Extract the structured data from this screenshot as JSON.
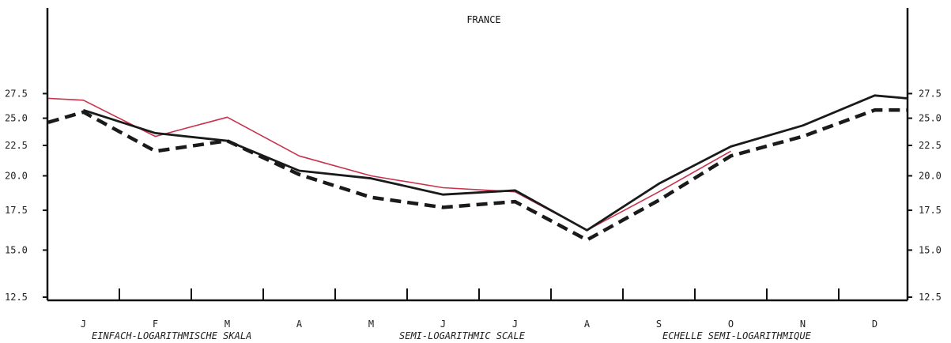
{
  "chart_data": {
    "type": "line",
    "title": "FRANCE",
    "categories": [
      "J",
      "F",
      "M",
      "A",
      "M",
      "J",
      "J",
      "A",
      "S",
      "O",
      "N",
      "D"
    ],
    "y_scale": "log",
    "ylim": [
      12.5,
      30.0
    ],
    "yticks": [
      12.5,
      15.0,
      17.5,
      20.0,
      22.5,
      25.0,
      27.5
    ],
    "ytick_labels": [
      "12.5",
      "15.0",
      "17.5",
      "20.0",
      "22.5",
      "25.0",
      "27.5"
    ],
    "series": [
      {
        "style": "solid-black",
        "color": "#1a1a1a",
        "x": [
          0,
          1,
          2,
          3,
          4,
          5,
          6,
          7,
          8,
          9,
          10,
          11,
          11.5
        ],
        "values": [
          25.8,
          23.6,
          22.9,
          20.4,
          19.8,
          18.6,
          18.9,
          16.2,
          19.4,
          22.4,
          24.3,
          27.3,
          27.0
        ]
      },
      {
        "style": "dashed-black",
        "color": "#1a1a1a",
        "x": [
          -0.5,
          0,
          1,
          2,
          3,
          4,
          5,
          6,
          7,
          8,
          9,
          10,
          11,
          11.5
        ],
        "values": [
          24.6,
          25.6,
          22.0,
          22.9,
          20.1,
          18.4,
          17.7,
          18.1,
          15.6,
          18.2,
          21.6,
          23.3,
          25.8,
          25.8
        ]
      },
      {
        "style": "solid-red",
        "color": "#c8324b",
        "x": [
          -0.5,
          0,
          1,
          2,
          3,
          4,
          5,
          6,
          7,
          8,
          9
        ],
        "values": [
          27.0,
          26.8,
          23.3,
          25.1,
          21.6,
          20.0,
          19.1,
          18.8,
          16.2,
          18.8,
          22.0
        ]
      }
    ],
    "annotations": [
      "EINFACH-LOGARITHMISCHE SKALA",
      "SEMI-LOGARITHMIC SCALE",
      "ECHELLE SEMI-LOGARITHMIQUE"
    ],
    "grid": false,
    "legend": "none"
  }
}
